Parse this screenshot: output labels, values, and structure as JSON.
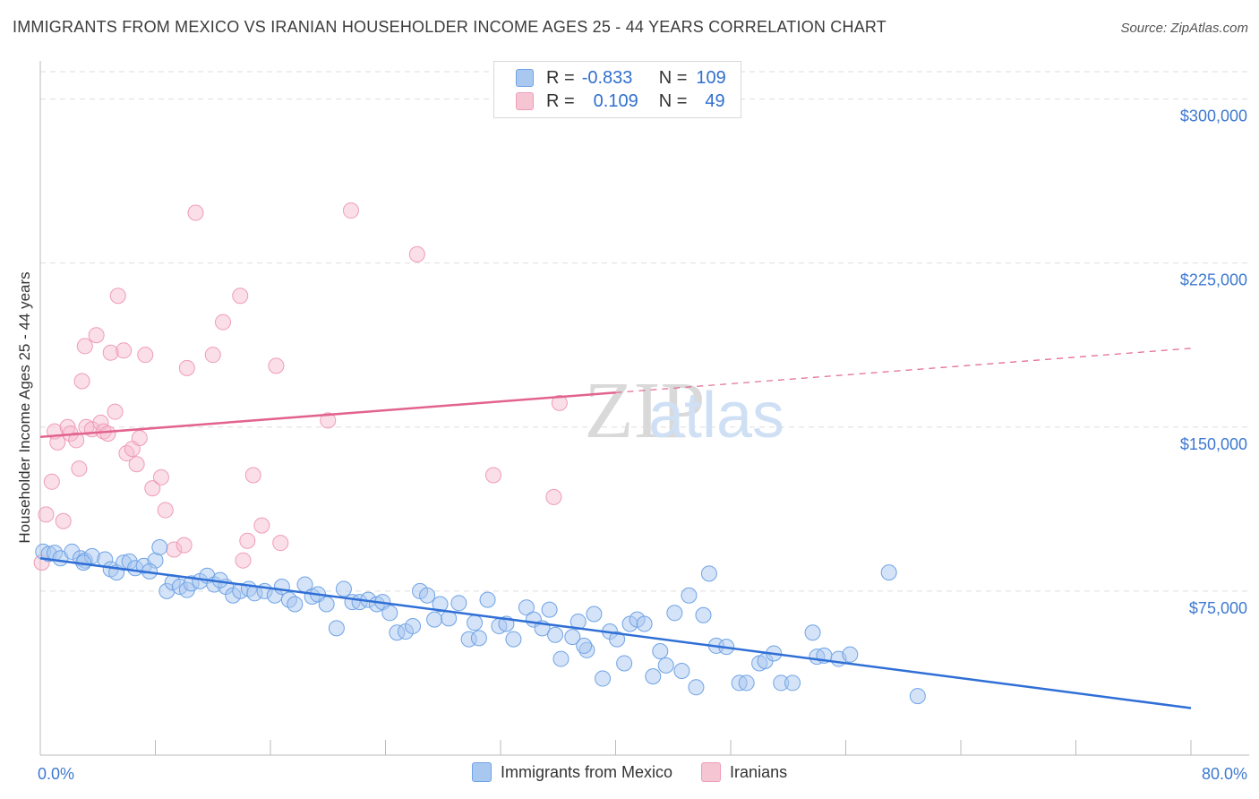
{
  "header": {
    "title": "IMMIGRANTS FROM MEXICO VS IRANIAN HOUSEHOLDER INCOME AGES 25 - 44 YEARS CORRELATION CHART",
    "source": "Source: ZipAtlas.com"
  },
  "legend": {
    "rows": [
      {
        "r_label": "R =",
        "r_value": "-0.833",
        "n_label": "N =",
        "n_value": "109",
        "color": "#a9c8f0"
      },
      {
        "r_label": "R =",
        "r_value": "0.109",
        "n_label": "N =",
        "n_value": "49",
        "color": "#f6b8cb"
      }
    ],
    "bottom": [
      {
        "label": "Immigrants from Mexico",
        "color": "#a9c8f0"
      },
      {
        "label": "Iranians",
        "color": "#f6b8cb"
      }
    ]
  },
  "watermark": {
    "part1": "ZIP",
    "part2": "atlas"
  },
  "chart_data": {
    "type": "scatter",
    "title": "IMMIGRANTS FROM MEXICO VS IRANIAN HOUSEHOLDER INCOME AGES 25 - 44 YEARS CORRELATION CHART",
    "xlabel": "",
    "ylabel": "Householder Income Ages 25 - 44 years",
    "xlim": [
      0,
      80
    ],
    "ylim": [
      0,
      312500
    ],
    "x_tick_labels": [
      "0.0%",
      "80.0%"
    ],
    "y_ticks": [
      75000,
      150000,
      225000,
      300000
    ],
    "y_tick_labels": [
      "$75,000",
      "$150,000",
      "$225,000",
      "$300,000"
    ],
    "grid": true,
    "colors": {
      "mexico": "#6fa3e6",
      "mexico_line": "#2f6fd6",
      "iran": "#ef9cb8",
      "iran_line": "#e2638e",
      "axis_text": "#3d79d0"
    },
    "series": [
      {
        "name": "Immigrants from Mexico",
        "trend": {
          "x": [
            0,
            80
          ],
          "y": [
            90000,
            21500
          ]
        },
        "points": [
          [
            0.2,
            93000
          ],
          [
            0.6,
            92000
          ],
          [
            1.0,
            92500
          ],
          [
            1.4,
            90000
          ],
          [
            2.2,
            93000
          ],
          [
            2.8,
            90000
          ],
          [
            3.1,
            89000
          ],
          [
            3.6,
            91000
          ],
          [
            4.5,
            89500
          ],
          [
            4.9,
            85000
          ],
          [
            5.3,
            83500
          ],
          [
            5.8,
            88000
          ],
          [
            6.2,
            88500
          ],
          [
            6.6,
            85500
          ],
          [
            7.2,
            86500
          ],
          [
            8.0,
            89000
          ],
          [
            8.3,
            95000
          ],
          [
            8.8,
            75000
          ],
          [
            9.2,
            79000
          ],
          [
            9.7,
            77000
          ],
          [
            10.2,
            75500
          ],
          [
            10.5,
            78500
          ],
          [
            11.1,
            79500
          ],
          [
            11.6,
            82000
          ],
          [
            12.1,
            78000
          ],
          [
            12.9,
            77000
          ],
          [
            13.4,
            73000
          ],
          [
            13.9,
            75000
          ],
          [
            14.5,
            76000
          ],
          [
            14.9,
            74000
          ],
          [
            15.6,
            75000
          ],
          [
            16.3,
            73000
          ],
          [
            16.8,
            77000
          ],
          [
            17.3,
            71000
          ],
          [
            17.7,
            69000
          ],
          [
            18.4,
            78000
          ],
          [
            18.9,
            72500
          ],
          [
            19.3,
            73500
          ],
          [
            19.9,
            69000
          ],
          [
            20.6,
            58000
          ],
          [
            21.1,
            76000
          ],
          [
            21.7,
            70000
          ],
          [
            22.2,
            70000
          ],
          [
            22.8,
            71000
          ],
          [
            23.4,
            69000
          ],
          [
            23.8,
            70000
          ],
          [
            24.3,
            65000
          ],
          [
            24.8,
            56000
          ],
          [
            25.4,
            56500
          ],
          [
            25.9,
            59000
          ],
          [
            26.4,
            75000
          ],
          [
            26.9,
            73000
          ],
          [
            27.4,
            62000
          ],
          [
            27.8,
            69000
          ],
          [
            28.4,
            62500
          ],
          [
            29.1,
            69500
          ],
          [
            29.8,
            53000
          ],
          [
            30.5,
            53500
          ],
          [
            31.1,
            71000
          ],
          [
            31.9,
            59000
          ],
          [
            32.4,
            60000
          ],
          [
            32.9,
            53000
          ],
          [
            33.8,
            67500
          ],
          [
            34.3,
            62000
          ],
          [
            34.9,
            58000
          ],
          [
            35.4,
            66500
          ],
          [
            35.8,
            55000
          ],
          [
            36.2,
            44000
          ],
          [
            37.0,
            54000
          ],
          [
            37.4,
            61000
          ],
          [
            38.0,
            48000
          ],
          [
            38.5,
            64500
          ],
          [
            39.1,
            35000
          ],
          [
            39.6,
            56500
          ],
          [
            40.1,
            53000
          ],
          [
            40.6,
            42000
          ],
          [
            41.0,
            60000
          ],
          [
            41.5,
            62000
          ],
          [
            42.0,
            60000
          ],
          [
            42.6,
            36000
          ],
          [
            43.1,
            47500
          ],
          [
            43.5,
            41000
          ],
          [
            44.1,
            65000
          ],
          [
            44.6,
            38500
          ],
          [
            45.1,
            73000
          ],
          [
            45.6,
            31000
          ],
          [
            46.1,
            64000
          ],
          [
            46.5,
            83000
          ],
          [
            47.0,
            50000
          ],
          [
            47.7,
            49500
          ],
          [
            48.6,
            33000
          ],
          [
            49.1,
            33000
          ],
          [
            50.0,
            42000
          ],
          [
            50.4,
            43000
          ],
          [
            51.0,
            46500
          ],
          [
            51.5,
            33000
          ],
          [
            52.3,
            33000
          ],
          [
            53.7,
            56000
          ],
          [
            54.0,
            45000
          ],
          [
            54.5,
            45500
          ],
          [
            55.5,
            44000
          ],
          [
            56.3,
            46000
          ],
          [
            59.0,
            83500
          ],
          [
            61.0,
            27000
          ],
          [
            3.0,
            88000
          ],
          [
            7.6,
            84000
          ],
          [
            12.5,
            80000
          ],
          [
            30.2,
            60500
          ],
          [
            37.8,
            50000
          ]
        ]
      },
      {
        "name": "Iranians",
        "trend": {
          "x": [
            0,
            80
          ],
          "y": [
            145500,
            186000
          ]
        },
        "dashed_from_x": 40,
        "points": [
          [
            0.1,
            88000
          ],
          [
            0.4,
            110000
          ],
          [
            0.8,
            125000
          ],
          [
            1.0,
            148000
          ],
          [
            1.2,
            143000
          ],
          [
            1.6,
            107000
          ],
          [
            1.9,
            150000
          ],
          [
            2.1,
            147000
          ],
          [
            2.5,
            144000
          ],
          [
            2.7,
            131000
          ],
          [
            2.9,
            171000
          ],
          [
            3.1,
            187000
          ],
          [
            3.2,
            150000
          ],
          [
            3.6,
            149000
          ],
          [
            3.9,
            192000
          ],
          [
            4.2,
            152000
          ],
          [
            4.4,
            148000
          ],
          [
            4.7,
            147000
          ],
          [
            4.9,
            184000
          ],
          [
            5.2,
            157000
          ],
          [
            5.4,
            210000
          ],
          [
            5.8,
            185000
          ],
          [
            6.0,
            138000
          ],
          [
            6.4,
            140000
          ],
          [
            6.7,
            133000
          ],
          [
            6.9,
            145000
          ],
          [
            7.3,
            183000
          ],
          [
            7.8,
            122000
          ],
          [
            8.4,
            127000
          ],
          [
            8.7,
            112000
          ],
          [
            9.3,
            94000
          ],
          [
            10.0,
            96000
          ],
          [
            10.2,
            177000
          ],
          [
            10.8,
            248000
          ],
          [
            12.0,
            183000
          ],
          [
            12.7,
            198000
          ],
          [
            13.9,
            210000
          ],
          [
            14.4,
            98000
          ],
          [
            14.8,
            128000
          ],
          [
            15.4,
            105000
          ],
          [
            16.4,
            178000
          ],
          [
            16.7,
            97000
          ],
          [
            20.0,
            153000
          ],
          [
            21.6,
            249000
          ],
          [
            26.2,
            229000
          ],
          [
            31.5,
            128000
          ],
          [
            35.7,
            118000
          ],
          [
            36.1,
            161000
          ],
          [
            14.1,
            89000
          ]
        ]
      }
    ]
  }
}
